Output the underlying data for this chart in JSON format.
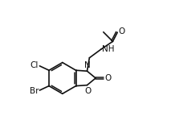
{
  "background": "#ffffff",
  "line_color": "#111111",
  "line_width": 1.2,
  "font_size": 7.5,
  "xlim": [
    0,
    10
  ],
  "ylim": [
    0,
    7.5
  ]
}
